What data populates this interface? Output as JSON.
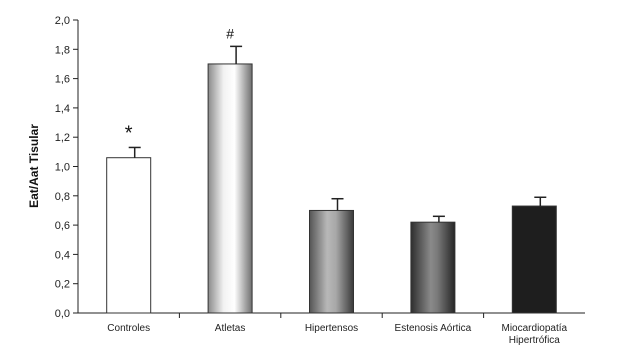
{
  "chart_data": {
    "type": "bar",
    "categories": [
      "Controles",
      "Atletas",
      "Hipertensos",
      "Estenosis Aórtica",
      "Miocardiopatía Hipertrófica"
    ],
    "category_lines": [
      [
        "Controles"
      ],
      [
        "Atletas"
      ],
      [
        "Hipertensos"
      ],
      [
        "Estenosis Aórtica"
      ],
      [
        "Miocardiopatía",
        "Hipertrófica"
      ]
    ],
    "values": [
      1.06,
      1.7,
      0.7,
      0.62,
      0.73
    ],
    "error_upper": [
      0.07,
      0.12,
      0.08,
      0.04,
      0.06
    ],
    "annotations": [
      "*",
      "#",
      "",
      "",
      ""
    ],
    "bar_styles": [
      "white",
      "light-gradient",
      "mid-gradient",
      "dark-gradient",
      "black"
    ],
    "title": "",
    "xlabel": "",
    "ylabel": "Eat/Aat Tisular",
    "ylim": [
      0,
      2.0
    ],
    "yticks": [
      "0,0",
      "0,2",
      "0,4",
      "0,6",
      "0,8",
      "1,0",
      "1,2",
      "1,4",
      "1,6",
      "1,8",
      "2,0"
    ],
    "grid": false,
    "legend": "none"
  }
}
